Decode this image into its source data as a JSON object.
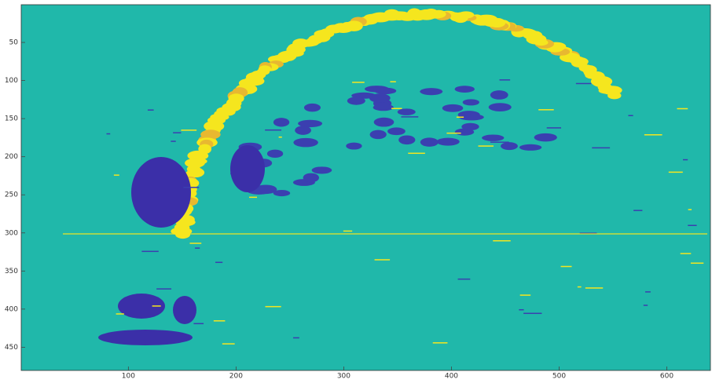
{
  "chart_data": {
    "type": "image",
    "xlim": [
      0.5,
      640.5
    ],
    "ylim": [
      0.5,
      480.5
    ],
    "y_direction": "reverse",
    "xticks": [
      100,
      200,
      300,
      400,
      500,
      600
    ],
    "yticks": [
      50,
      100,
      150,
      200,
      250,
      300,
      350,
      400,
      450
    ],
    "background_color": "#20b8aa"
  }
}
